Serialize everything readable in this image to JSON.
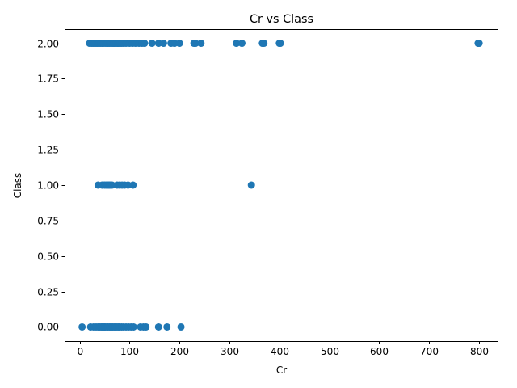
{
  "chart_data": {
    "type": "scatter",
    "title": "Cr vs Class",
    "xlabel": "Cr",
    "ylabel": "Class",
    "xlim": [
      -30,
      837
    ],
    "ylim": [
      -0.1,
      2.1
    ],
    "xticks": [
      0,
      100,
      200,
      300,
      400,
      500,
      600,
      700,
      800
    ],
    "xtick_labels": [
      "0",
      "100",
      "200",
      "300",
      "400",
      "500",
      "600",
      "700",
      "800"
    ],
    "yticks": [
      0.0,
      0.25,
      0.5,
      0.75,
      1.0,
      1.25,
      1.5,
      1.75,
      2.0
    ],
    "ytick_labels": [
      "0.00",
      "0.25",
      "0.50",
      "0.75",
      "1.00",
      "1.25",
      "1.50",
      "1.75",
      "2.00"
    ],
    "grid": false,
    "marker_color": "#1f77b4",
    "series": [
      {
        "points": [
          [
            5,
            0
          ],
          [
            22,
            0
          ],
          [
            28,
            0
          ],
          [
            33,
            0
          ],
          [
            37,
            0
          ],
          [
            40,
            0
          ],
          [
            43,
            0
          ],
          [
            45,
            0
          ],
          [
            48,
            0
          ],
          [
            50,
            0
          ],
          [
            52,
            0
          ],
          [
            55,
            0
          ],
          [
            57,
            0
          ],
          [
            60,
            0
          ],
          [
            62,
            0
          ],
          [
            65,
            0
          ],
          [
            67,
            0
          ],
          [
            70,
            0
          ],
          [
            72,
            0
          ],
          [
            75,
            0
          ],
          [
            78,
            0
          ],
          [
            80,
            0
          ],
          [
            84,
            0
          ],
          [
            88,
            0
          ],
          [
            93,
            0
          ],
          [
            98,
            0
          ],
          [
            103,
            0
          ],
          [
            108,
            0
          ],
          [
            122,
            0
          ],
          [
            128,
            0
          ],
          [
            133,
            0
          ],
          [
            158,
            0
          ],
          [
            175,
            0
          ],
          [
            203,
            0
          ],
          [
            37,
            1
          ],
          [
            45,
            1
          ],
          [
            50,
            1
          ],
          [
            53,
            1
          ],
          [
            56,
            1
          ],
          [
            58,
            1
          ],
          [
            60,
            1
          ],
          [
            62,
            1
          ],
          [
            65,
            1
          ],
          [
            75,
            1
          ],
          [
            80,
            1
          ],
          [
            85,
            1
          ],
          [
            90,
            1
          ],
          [
            97,
            1
          ],
          [
            107,
            1
          ],
          [
            344,
            1
          ],
          [
            20,
            2
          ],
          [
            24,
            2
          ],
          [
            27,
            2
          ],
          [
            30,
            2
          ],
          [
            33,
            2
          ],
          [
            36,
            2
          ],
          [
            39,
            2
          ],
          [
            42,
            2
          ],
          [
            45,
            2
          ],
          [
            48,
            2
          ],
          [
            52,
            2
          ],
          [
            55,
            2
          ],
          [
            57,
            2
          ],
          [
            60,
            2
          ],
          [
            63,
            2
          ],
          [
            66,
            2
          ],
          [
            68,
            2
          ],
          [
            70,
            2
          ],
          [
            73,
            2
          ],
          [
            76,
            2
          ],
          [
            78,
            2
          ],
          [
            81,
            2
          ],
          [
            84,
            2
          ],
          [
            88,
            2
          ],
          [
            93,
            2
          ],
          [
            100,
            2
          ],
          [
            106,
            2
          ],
          [
            112,
            2
          ],
          [
            119,
            2
          ],
          [
            125,
            2
          ],
          [
            130,
            2
          ],
          [
            145,
            2
          ],
          [
            158,
            2
          ],
          [
            168,
            2
          ],
          [
            183,
            2
          ],
          [
            190,
            2
          ],
          [
            200,
            2
          ],
          [
            229,
            2
          ],
          [
            232,
            2
          ],
          [
            243,
            2
          ],
          [
            314,
            2
          ],
          [
            325,
            2
          ],
          [
            366,
            2
          ],
          [
            369,
            2
          ],
          [
            400,
            2
          ],
          [
            402,
            2
          ],
          [
            798,
            2
          ],
          [
            800,
            2
          ]
        ]
      }
    ]
  }
}
